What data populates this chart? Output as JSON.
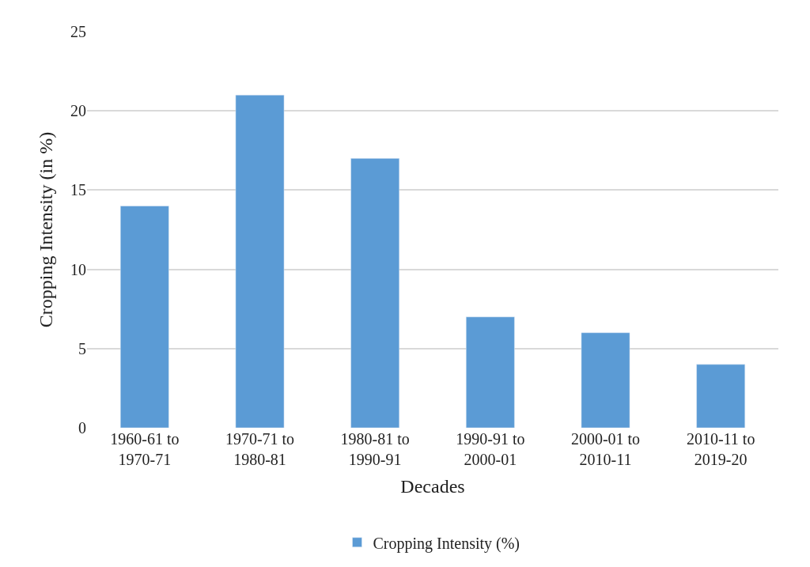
{
  "chart_data": {
    "type": "bar",
    "xlabel": "Decades",
    "ylabel": "Cropping Intensity (in %)",
    "categories": [
      "1960-61 to\n1970-71",
      "1970-71 to\n1980-81",
      "1980-81 to\n1990-91",
      "1990-91 to\n2000-01",
      "2000-01 to\n2010-11",
      "2010-11 to\n2019-20"
    ],
    "series": [
      {
        "name": "Cropping Intensity (%)",
        "color": "#5b9bd5",
        "values": [
          14,
          21,
          17,
          7,
          6,
          4
        ]
      }
    ],
    "ylim": [
      0,
      25
    ],
    "yticks": [
      0,
      5,
      10,
      15,
      20,
      25
    ],
    "grid": "y",
    "legend": "bottom"
  }
}
